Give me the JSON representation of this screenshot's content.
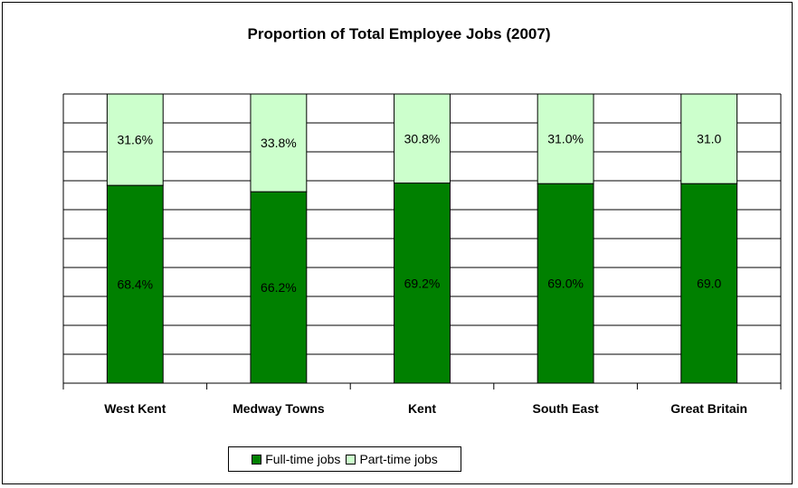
{
  "chart_data": {
    "type": "bar",
    "stacked": true,
    "title": "Proportion of Total Employee Jobs (2007)",
    "categories": [
      "West Kent",
      "Medway Towns",
      "Kent",
      "South East",
      "Great Britain"
    ],
    "series": [
      {
        "name": "Full-time jobs",
        "values": [
          68.4,
          66.2,
          69.2,
          69.0,
          69.0
        ],
        "labels": [
          "68.4%",
          "66.2%",
          "69.2%",
          "69.0%",
          "69.0"
        ],
        "color": "#008000"
      },
      {
        "name": "Part-time jobs",
        "values": [
          31.6,
          33.8,
          30.8,
          31.0,
          31.0
        ],
        "labels": [
          "31.6%",
          "33.8%",
          "30.8%",
          "31.0%",
          "31.0"
        ],
        "color": "#ccffcc"
      }
    ],
    "ylim": [
      0,
      100
    ],
    "grid": true,
    "legend_position": "bottom"
  }
}
